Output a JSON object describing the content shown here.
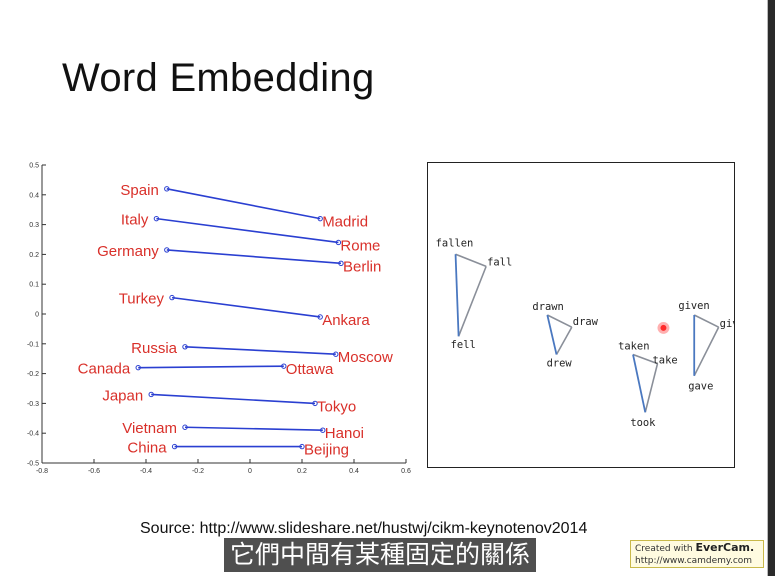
{
  "slide": {
    "title": "Word Embedding",
    "source": "Source: http://www.slideshare.net/hustwj/cikm-keynotenov2014",
    "subtitle": "它們中間有某種固定的關係"
  },
  "watermark": {
    "line1_prefix": "Created with ",
    "line1_brand": "EverCam.",
    "line2": "http://www.camdemy.com"
  },
  "colors": {
    "label_red": "#d9302a",
    "line_blue": "#2a3fd1",
    "tri_blue": "#4a78c0",
    "tri_gray": "#8a8f99"
  },
  "chart_data": [
    {
      "type": "scatter",
      "title": "",
      "xlabel": "",
      "ylabel": "",
      "xlim": [
        -0.8,
        0.6
      ],
      "ylim": [
        -0.5,
        0.5
      ],
      "xticks": [
        "-0.8",
        "-0.6",
        "-0.4",
        "-0.2",
        "0",
        "0.2",
        "0.4",
        "0.6"
      ],
      "yticks": [
        "0.5",
        "0.4",
        "0.3",
        "0.2",
        "0.1",
        "0",
        "-0.1",
        "-0.2",
        "-0.3",
        "-0.4",
        "-0.5"
      ],
      "grid": false,
      "pairs": [
        {
          "country": "Spain",
          "capital": "Madrid",
          "from": [
            -0.32,
            0.42
          ],
          "to": [
            0.27,
            0.32
          ]
        },
        {
          "country": "Italy",
          "capital": "Rome",
          "from": [
            -0.36,
            0.32
          ],
          "to": [
            0.34,
            0.24
          ]
        },
        {
          "country": "Germany",
          "capital": "Berlin",
          "from": [
            -0.32,
            0.215
          ],
          "to": [
            0.35,
            0.17
          ]
        },
        {
          "country": "Turkey",
          "capital": "Ankara",
          "from": [
            -0.3,
            0.055
          ],
          "to": [
            0.27,
            -0.01
          ]
        },
        {
          "country": "Russia",
          "capital": "Moscow",
          "from": [
            -0.25,
            -0.11
          ],
          "to": [
            0.33,
            -0.135
          ]
        },
        {
          "country": "Canada",
          "capital": "Ottawa",
          "from": [
            -0.43,
            -0.18
          ],
          "to": [
            0.13,
            -0.175
          ]
        },
        {
          "country": "Japan",
          "capital": "Tokyo",
          "from": [
            -0.38,
            -0.27
          ],
          "to": [
            0.25,
            -0.3
          ]
        },
        {
          "country": "Vietnam",
          "capital": "Hanoi",
          "from": [
            -0.25,
            -0.38
          ],
          "to": [
            0.28,
            -0.39
          ]
        },
        {
          "country": "China",
          "capital": "Beijing",
          "from": [
            -0.29,
            -0.445
          ],
          "to": [
            0.2,
            -0.445
          ]
        }
      ]
    },
    {
      "type": "scatter",
      "title": "",
      "xlabel": "",
      "ylabel": "",
      "grid": false,
      "triangles": [
        {
          "words": [
            {
              "label": "fallen",
              "x": 0.09,
              "y": 0.7
            },
            {
              "label": "fall",
              "x": 0.19,
              "y": 0.66
            },
            {
              "label": "fell",
              "x": 0.1,
              "y": 0.43
            }
          ]
        },
        {
          "words": [
            {
              "label": "drawn",
              "x": 0.39,
              "y": 0.5
            },
            {
              "label": "draw",
              "x": 0.47,
              "y": 0.46
            },
            {
              "label": "drew",
              "x": 0.42,
              "y": 0.37
            }
          ]
        },
        {
          "words": [
            {
              "label": "taken",
              "x": 0.67,
              "y": 0.37
            },
            {
              "label": "take",
              "x": 0.75,
              "y": 0.34
            },
            {
              "label": "took",
              "x": 0.71,
              "y": 0.18
            }
          ]
        },
        {
          "words": [
            {
              "label": "given",
              "x": 0.87,
              "y": 0.5
            },
            {
              "label": "give",
              "x": 0.95,
              "y": 0.46
            },
            {
              "label": "gave",
              "x": 0.87,
              "y": 0.3
            }
          ]
        }
      ]
    }
  ]
}
